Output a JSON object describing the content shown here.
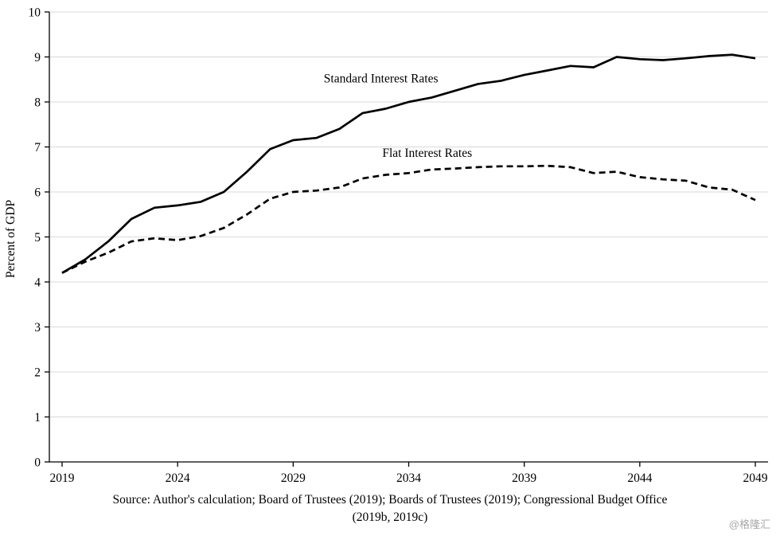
{
  "chart_data": {
    "type": "line",
    "title": "",
    "xlabel": "",
    "ylabel": "Percent of GDP",
    "ylim": [
      0,
      10
    ],
    "yticks": [
      0,
      1,
      2,
      3,
      4,
      5,
      6,
      7,
      8,
      9,
      10
    ],
    "xticks": [
      2019,
      2024,
      2029,
      2034,
      2039,
      2044,
      2049
    ],
    "grid": true,
    "legend_position": "inline-labels",
    "x": [
      2019,
      2020,
      2021,
      2022,
      2023,
      2024,
      2025,
      2026,
      2027,
      2028,
      2029,
      2030,
      2031,
      2032,
      2033,
      2034,
      2035,
      2036,
      2037,
      2038,
      2039,
      2040,
      2041,
      2042,
      2043,
      2044,
      2045,
      2046,
      2047,
      2048,
      2049
    ],
    "series": [
      {
        "name": "Standard Interest Rates",
        "style": "solid",
        "values": [
          4.2,
          4.5,
          4.9,
          5.4,
          5.65,
          5.7,
          5.78,
          6.0,
          6.45,
          6.95,
          7.15,
          7.2,
          7.4,
          7.75,
          7.85,
          8.0,
          8.1,
          8.25,
          8.4,
          8.47,
          8.6,
          8.7,
          8.8,
          8.77,
          9.0,
          8.95,
          8.93,
          8.97,
          9.02,
          9.05,
          8.97
        ]
      },
      {
        "name": "Flat Interest Rates",
        "style": "dashed",
        "values": [
          4.2,
          4.45,
          4.65,
          4.9,
          4.97,
          4.93,
          5.02,
          5.2,
          5.5,
          5.85,
          6.0,
          6.03,
          6.1,
          6.3,
          6.38,
          6.42,
          6.5,
          6.52,
          6.55,
          6.57,
          6.57,
          6.58,
          6.55,
          6.42,
          6.45,
          6.33,
          6.28,
          6.25,
          6.1,
          6.05,
          5.82
        ]
      }
    ],
    "annotations": [
      {
        "text": "Standard Interest Rates",
        "x": 2032.8,
        "y": 8.43
      },
      {
        "text": "Flat Interest Rates",
        "x": 2034.8,
        "y": 6.78
      }
    ],
    "colors": {
      "line": "#000000",
      "grid": "#d9d9d9",
      "axis": "#000000"
    }
  },
  "source_note": {
    "line1": "Source: Author's calculation; Board of Trustees (2019);  Boards of Trustees (2019);  Congressional Budget Office",
    "line2": "(2019b, 2019c)"
  },
  "watermark": "@格隆汇"
}
